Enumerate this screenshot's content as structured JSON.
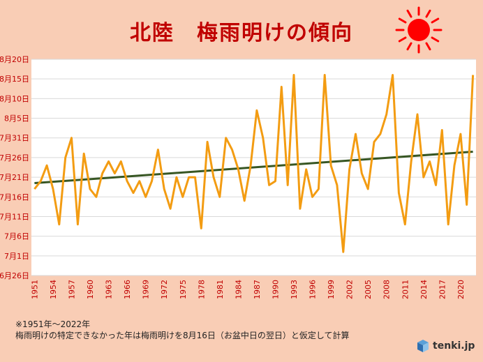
{
  "title": "北陸　梅雨明けの傾向",
  "notes": {
    "line1": "※1951年～2022年",
    "line2": "梅雨明けの特定できなかった年は梅雨明けを8月16日（お盆中日の翌日）と仮定して計算"
  },
  "logo": {
    "text": "tenki.jp",
    "icon": "cube-icon"
  },
  "colors": {
    "series": "#f39c12",
    "trend": "#375623",
    "axis_labels": "#c00000",
    "background": "#f9cdb5",
    "sun": "#ff0000"
  },
  "chart_data": {
    "type": "line",
    "y_unit": "day of year (Jun 26 = 0)",
    "ylim": [
      0,
      55
    ],
    "y_ticks": [
      {
        "v": 0,
        "label": "6月26日"
      },
      {
        "v": 5,
        "label": "7月1日"
      },
      {
        "v": 10,
        "label": "7月6日"
      },
      {
        "v": 15,
        "label": "7月11日"
      },
      {
        "v": 20,
        "label": "7月16日"
      },
      {
        "v": 25,
        "label": "7月21日"
      },
      {
        "v": 30,
        "label": "7月26日"
      },
      {
        "v": 35,
        "label": "7月31日"
      },
      {
        "v": 40,
        "label": "8月5日"
      },
      {
        "v": 45,
        "label": "8月10日"
      },
      {
        "v": 50,
        "label": "8月15日"
      },
      {
        "v": 55,
        "label": "8月20日"
      }
    ],
    "x_start": 1951,
    "x_end": 2022,
    "x_tick_labels": [
      "1951",
      "1954",
      "1957",
      "1960",
      "1963",
      "1966",
      "1969",
      "1972",
      "1975",
      "1978",
      "1981",
      "1984",
      "1987",
      "1990",
      "1993",
      "1996",
      "1999",
      "2002",
      "2005",
      "2008",
      "2011",
      "2014",
      "2017",
      "2020"
    ],
    "series": [
      {
        "x": [
          1951,
          1952,
          1953,
          1954,
          1955,
          1956,
          1957,
          1958,
          1959,
          1960,
          1961,
          1962,
          1963,
          1964,
          1965,
          1966,
          1967,
          1968,
          1969,
          1970,
          1971,
          1972,
          1973,
          1974,
          1975,
          1976,
          1977,
          1978,
          1979,
          1980,
          1981,
          1982,
          1983,
          1984,
          1985,
          1986,
          1987,
          1988,
          1989,
          1990,
          1991,
          1992,
          1993,
          1994,
          1995,
          1996,
          1997,
          1998,
          1999,
          2000,
          2001,
          2002,
          2003,
          2004,
          2005,
          2006,
          2007,
          2008,
          2009,
          2010,
          2011,
          2012,
          2013,
          2014,
          2015,
          2016,
          2017,
          2018,
          2019,
          2020,
          2021,
          2022
        ],
        "values": [
          22,
          24,
          28,
          22,
          13,
          30,
          35,
          13,
          31,
          22,
          20,
          26,
          29,
          26,
          29,
          24,
          21,
          24,
          20,
          24,
          32,
          22,
          17,
          25,
          20,
          25,
          25,
          12,
          34,
          25,
          20,
          35,
          32,
          27,
          19,
          28,
          42,
          35,
          23,
          24,
          48,
          23,
          51,
          17,
          27,
          20,
          22,
          51,
          28,
          23,
          6,
          27,
          36,
          26,
          22,
          34,
          36,
          41,
          51,
          21,
          13,
          29,
          41,
          25,
          29,
          23,
          37,
          13,
          28,
          36,
          18,
          51
        ]
      }
    ],
    "trend": {
      "from": [
        1951,
        23.5
      ],
      "to": [
        2022,
        31.5
      ]
    }
  }
}
